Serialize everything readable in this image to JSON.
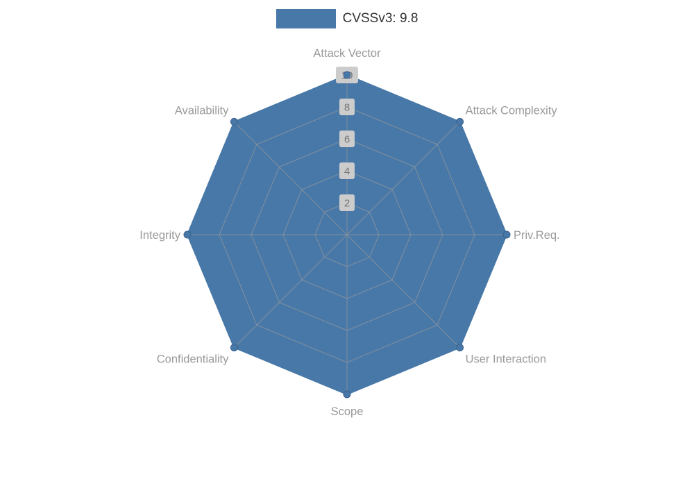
{
  "legend": {
    "label": "CVSSv3: 9.8",
    "swatch_color": "#4878a8",
    "text_color": "#333333"
  },
  "chart_data": {
    "type": "radar",
    "title": "CVSSv3: 9.8",
    "indicators": [
      "Attack Vector",
      "Attack Complexity",
      "Priv.Req.",
      "User Interaction",
      "Scope",
      "Confidentiality",
      "Integrity",
      "Availability"
    ],
    "axis_range": [
      0,
      10
    ],
    "ticks": [
      2,
      4,
      6,
      8,
      10
    ],
    "series": [
      {
        "name": "CVSSv3: 9.8",
        "values": [
          10,
          10,
          10,
          10,
          10,
          10,
          10,
          10
        ]
      }
    ],
    "grid": true,
    "legend_position": "top-center",
    "colors": {
      "series": "#4878a8",
      "series_dot": "#4878a8",
      "grid_line": "#8c949c",
      "axis_label": "#999999",
      "tick_text": "#777777",
      "tick_box": "#cccccc"
    }
  }
}
